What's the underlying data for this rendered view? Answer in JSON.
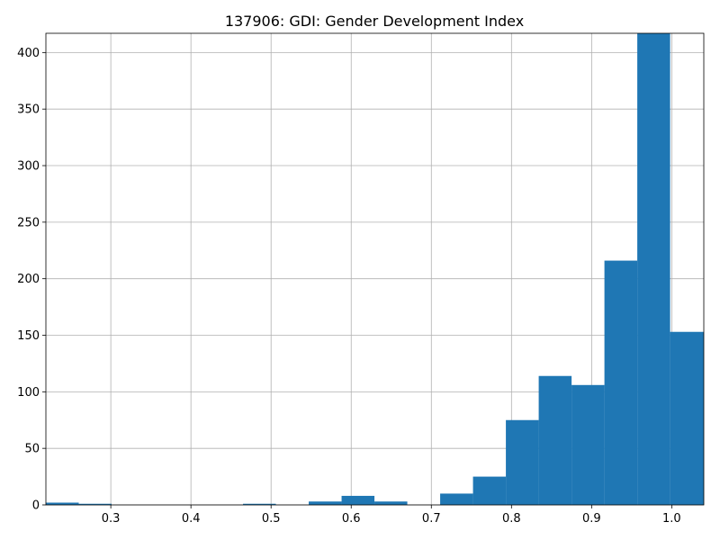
{
  "chart_data": {
    "type": "bar",
    "title": "137906: GDI: Gender Development Index",
    "xlabel": "",
    "ylabel": "",
    "xlim": [
      0.219,
      1.04
    ],
    "ylim": [
      0,
      417
    ],
    "grid": true,
    "bar_color": "#1f77b4",
    "xticks": [
      {
        "value": 0.3,
        "label": "0.3"
      },
      {
        "value": 0.4,
        "label": "0.4"
      },
      {
        "value": 0.5,
        "label": "0.5"
      },
      {
        "value": 0.6,
        "label": "0.6"
      },
      {
        "value": 0.7,
        "label": "0.7"
      },
      {
        "value": 0.8,
        "label": "0.8"
      },
      {
        "value": 0.9,
        "label": "0.9"
      },
      {
        "value": 1.0,
        "label": "1.0"
      }
    ],
    "yticks": [
      {
        "value": 0,
        "label": "0"
      },
      {
        "value": 50,
        "label": "50"
      },
      {
        "value": 100,
        "label": "100"
      },
      {
        "value": 150,
        "label": "150"
      },
      {
        "value": 200,
        "label": "200"
      },
      {
        "value": 250,
        "label": "250"
      },
      {
        "value": 300,
        "label": "300"
      },
      {
        "value": 350,
        "label": "350"
      },
      {
        "value": 400,
        "label": "400"
      }
    ],
    "bins": [
      {
        "x0": 0.219,
        "x1": 0.26,
        "count": 2
      },
      {
        "x0": 0.26,
        "x1": 0.301,
        "count": 1
      },
      {
        "x0": 0.301,
        "x1": 0.342,
        "count": 0
      },
      {
        "x0": 0.342,
        "x1": 0.383,
        "count": 0
      },
      {
        "x0": 0.383,
        "x1": 0.424,
        "count": 0
      },
      {
        "x0": 0.424,
        "x1": 0.465,
        "count": 0
      },
      {
        "x0": 0.465,
        "x1": 0.506,
        "count": 1
      },
      {
        "x0": 0.506,
        "x1": 0.547,
        "count": 0
      },
      {
        "x0": 0.547,
        "x1": 0.588,
        "count": 3
      },
      {
        "x0": 0.588,
        "x1": 0.629,
        "count": 8
      },
      {
        "x0": 0.629,
        "x1": 0.67,
        "count": 3
      },
      {
        "x0": 0.67,
        "x1": 0.711,
        "count": 0
      },
      {
        "x0": 0.711,
        "x1": 0.752,
        "count": 10
      },
      {
        "x0": 0.752,
        "x1": 0.793,
        "count": 25
      },
      {
        "x0": 0.793,
        "x1": 0.834,
        "count": 75
      },
      {
        "x0": 0.834,
        "x1": 0.875,
        "count": 114
      },
      {
        "x0": 0.875,
        "x1": 0.916,
        "count": 106
      },
      {
        "x0": 0.916,
        "x1": 0.957,
        "count": 216
      },
      {
        "x0": 0.957,
        "x1": 0.998,
        "count": 417
      },
      {
        "x0": 0.998,
        "x1": 1.04,
        "count": 153
      }
    ]
  }
}
